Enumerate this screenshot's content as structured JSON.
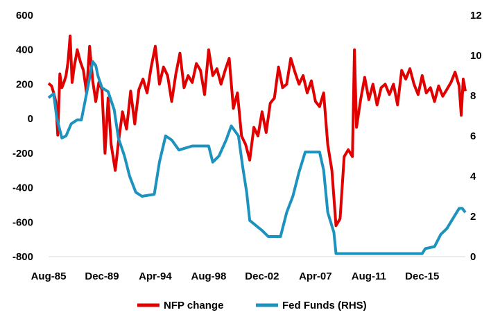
{
  "chart_data": {
    "type": "line",
    "title": "",
    "xlabel": "",
    "ylabel": "",
    "y_left_lim": [
      -800,
      600
    ],
    "y_left_ticks": [
      -800,
      -600,
      -400,
      -200,
      0,
      200,
      400,
      600
    ],
    "y_right_lim": [
      0,
      12
    ],
    "y_right_ticks": [
      0,
      2,
      4,
      6,
      8,
      10,
      12
    ],
    "x_ticks": [
      "Aug-85",
      "Dec-89",
      "Apr-94",
      "Aug-98",
      "Dec-02",
      "Apr-07",
      "Aug-11",
      "Dec-15"
    ],
    "x_range": [
      "1985-08",
      "2019-06"
    ],
    "grid": false,
    "legend_position": "bottom",
    "series": [
      {
        "name": "NFP change",
        "axis": "left",
        "color": "#E00000",
        "points": [
          [
            "1985-08",
            205
          ],
          [
            "1985-11",
            190
          ],
          [
            "1986-01",
            150
          ],
          [
            "1986-03",
            100
          ],
          [
            "1986-05",
            -95
          ],
          [
            "1986-07",
            260
          ],
          [
            "1986-09",
            180
          ],
          [
            "1986-11",
            210
          ],
          [
            "1987-01",
            250
          ],
          [
            "1987-03",
            330
          ],
          [
            "1987-05",
            480
          ],
          [
            "1987-07",
            210
          ],
          [
            "1987-09",
            300
          ],
          [
            "1987-12",
            400
          ],
          [
            "1988-03",
            330
          ],
          [
            "1988-06",
            280
          ],
          [
            "1988-09",
            150
          ],
          [
            "1988-12",
            420
          ],
          [
            "1989-03",
            220
          ],
          [
            "1989-06",
            100
          ],
          [
            "1989-09",
            210
          ],
          [
            "1989-12",
            170
          ],
          [
            "1990-03",
            -200
          ],
          [
            "1990-06",
            120
          ],
          [
            "1990-09",
            -150
          ],
          [
            "1991-01",
            -300
          ],
          [
            "1991-04",
            -140
          ],
          [
            "1991-08",
            40
          ],
          [
            "1991-12",
            -60
          ],
          [
            "1992-04",
            160
          ],
          [
            "1992-08",
            -30
          ],
          [
            "1992-12",
            170
          ],
          [
            "1993-04",
            230
          ],
          [
            "1993-08",
            150
          ],
          [
            "1993-12",
            300
          ],
          [
            "1994-04",
            420
          ],
          [
            "1994-08",
            200
          ],
          [
            "1994-12",
            300
          ],
          [
            "1995-04",
            250
          ],
          [
            "1995-08",
            100
          ],
          [
            "1995-12",
            260
          ],
          [
            "1996-04",
            380
          ],
          [
            "1996-08",
            180
          ],
          [
            "1996-12",
            250
          ],
          [
            "1997-04",
            210
          ],
          [
            "1997-08",
            320
          ],
          [
            "1997-12",
            280
          ],
          [
            "1998-04",
            140
          ],
          [
            "1998-08",
            400
          ],
          [
            "1998-12",
            250
          ],
          [
            "1999-04",
            290
          ],
          [
            "1999-08",
            200
          ],
          [
            "1999-12",
            280
          ],
          [
            "2000-04",
            350
          ],
          [
            "2000-08",
            60
          ],
          [
            "2000-12",
            150
          ],
          [
            "2001-04",
            -100
          ],
          [
            "2001-08",
            -150
          ],
          [
            "2001-12",
            -240
          ],
          [
            "2002-04",
            -50
          ],
          [
            "2002-08",
            -100
          ],
          [
            "2002-12",
            40
          ],
          [
            "2003-04",
            -80
          ],
          [
            "2003-08",
            90
          ],
          [
            "2003-12",
            120
          ],
          [
            "2004-04",
            300
          ],
          [
            "2004-08",
            180
          ],
          [
            "2004-12",
            200
          ],
          [
            "2005-04",
            350
          ],
          [
            "2005-08",
            270
          ],
          [
            "2005-12",
            200
          ],
          [
            "2006-04",
            250
          ],
          [
            "2006-08",
            150
          ],
          [
            "2006-12",
            220
          ],
          [
            "2007-04",
            100
          ],
          [
            "2007-08",
            70
          ],
          [
            "2007-12",
            150
          ],
          [
            "2008-04",
            -150
          ],
          [
            "2008-08",
            -300
          ],
          [
            "2008-12",
            -620
          ],
          [
            "2009-04",
            -580
          ],
          [
            "2009-08",
            -220
          ],
          [
            "2009-12",
            -180
          ],
          [
            "2010-04",
            -220
          ],
          [
            "2010-06",
            400
          ],
          [
            "2010-08",
            -50
          ],
          [
            "2010-12",
            110
          ],
          [
            "2011-04",
            240
          ],
          [
            "2011-08",
            110
          ],
          [
            "2011-12",
            200
          ],
          [
            "2012-04",
            80
          ],
          [
            "2012-08",
            180
          ],
          [
            "2012-12",
            200
          ],
          [
            "2013-04",
            140
          ],
          [
            "2013-08",
            200
          ],
          [
            "2013-12",
            80
          ],
          [
            "2014-04",
            280
          ],
          [
            "2014-08",
            230
          ],
          [
            "2014-12",
            290
          ],
          [
            "2015-04",
            200
          ],
          [
            "2015-08",
            140
          ],
          [
            "2015-12",
            250
          ],
          [
            "2016-04",
            150
          ],
          [
            "2016-08",
            180
          ],
          [
            "2016-12",
            100
          ],
          [
            "2017-04",
            190
          ],
          [
            "2017-08",
            130
          ],
          [
            "2017-12",
            170
          ],
          [
            "2018-04",
            210
          ],
          [
            "2018-08",
            270
          ],
          [
            "2018-12",
            190
          ],
          [
            "2019-02",
            20
          ],
          [
            "2019-04",
            230
          ],
          [
            "2019-06",
            160
          ]
        ]
      },
      {
        "name": "Fed Funds (RHS)",
        "axis": "right",
        "color": "#1B93BE",
        "points": [
          [
            "1985-08",
            7.9
          ],
          [
            "1986-01",
            8.1
          ],
          [
            "1986-04",
            6.9
          ],
          [
            "1986-09",
            5.9
          ],
          [
            "1987-01",
            6.0
          ],
          [
            "1987-06",
            6.6
          ],
          [
            "1987-12",
            6.8
          ],
          [
            "1988-04",
            6.8
          ],
          [
            "1988-09",
            8.1
          ],
          [
            "1989-03",
            9.7
          ],
          [
            "1989-06",
            9.5
          ],
          [
            "1989-08",
            9.0
          ],
          [
            "1989-12",
            8.4
          ],
          [
            "1990-06",
            8.2
          ],
          [
            "1990-12",
            7.3
          ],
          [
            "1991-04",
            5.9
          ],
          [
            "1991-10",
            5.0
          ],
          [
            "1992-03",
            4.0
          ],
          [
            "1992-09",
            3.2
          ],
          [
            "1993-03",
            3.0
          ],
          [
            "1994-03",
            3.1
          ],
          [
            "1994-08",
            4.7
          ],
          [
            "1995-02",
            6.0
          ],
          [
            "1995-08",
            5.8
          ],
          [
            "1996-03",
            5.3
          ],
          [
            "1997-04",
            5.5
          ],
          [
            "1998-08",
            5.5
          ],
          [
            "1998-12",
            4.7
          ],
          [
            "1999-06",
            5.0
          ],
          [
            "2000-01",
            5.8
          ],
          [
            "2000-06",
            6.5
          ],
          [
            "2001-01",
            6.0
          ],
          [
            "2001-05",
            4.5
          ],
          [
            "2001-09",
            3.2
          ],
          [
            "2001-12",
            1.8
          ],
          [
            "2002-12",
            1.3
          ],
          [
            "2003-06",
            1.0
          ],
          [
            "2004-06",
            1.0
          ],
          [
            "2004-12",
            2.2
          ],
          [
            "2005-06",
            3.0
          ],
          [
            "2005-12",
            4.2
          ],
          [
            "2006-06",
            5.2
          ],
          [
            "2007-08",
            5.2
          ],
          [
            "2007-12",
            4.3
          ],
          [
            "2008-04",
            2.2
          ],
          [
            "2008-10",
            1.2
          ],
          [
            "2008-12",
            0.15
          ],
          [
            "2015-12",
            0.15
          ],
          [
            "2016-03",
            0.4
          ],
          [
            "2016-12",
            0.5
          ],
          [
            "2017-06",
            1.1
          ],
          [
            "2017-12",
            1.4
          ],
          [
            "2018-06",
            1.9
          ],
          [
            "2018-12",
            2.4
          ],
          [
            "2019-03",
            2.4
          ],
          [
            "2019-06",
            2.2
          ]
        ]
      }
    ]
  }
}
